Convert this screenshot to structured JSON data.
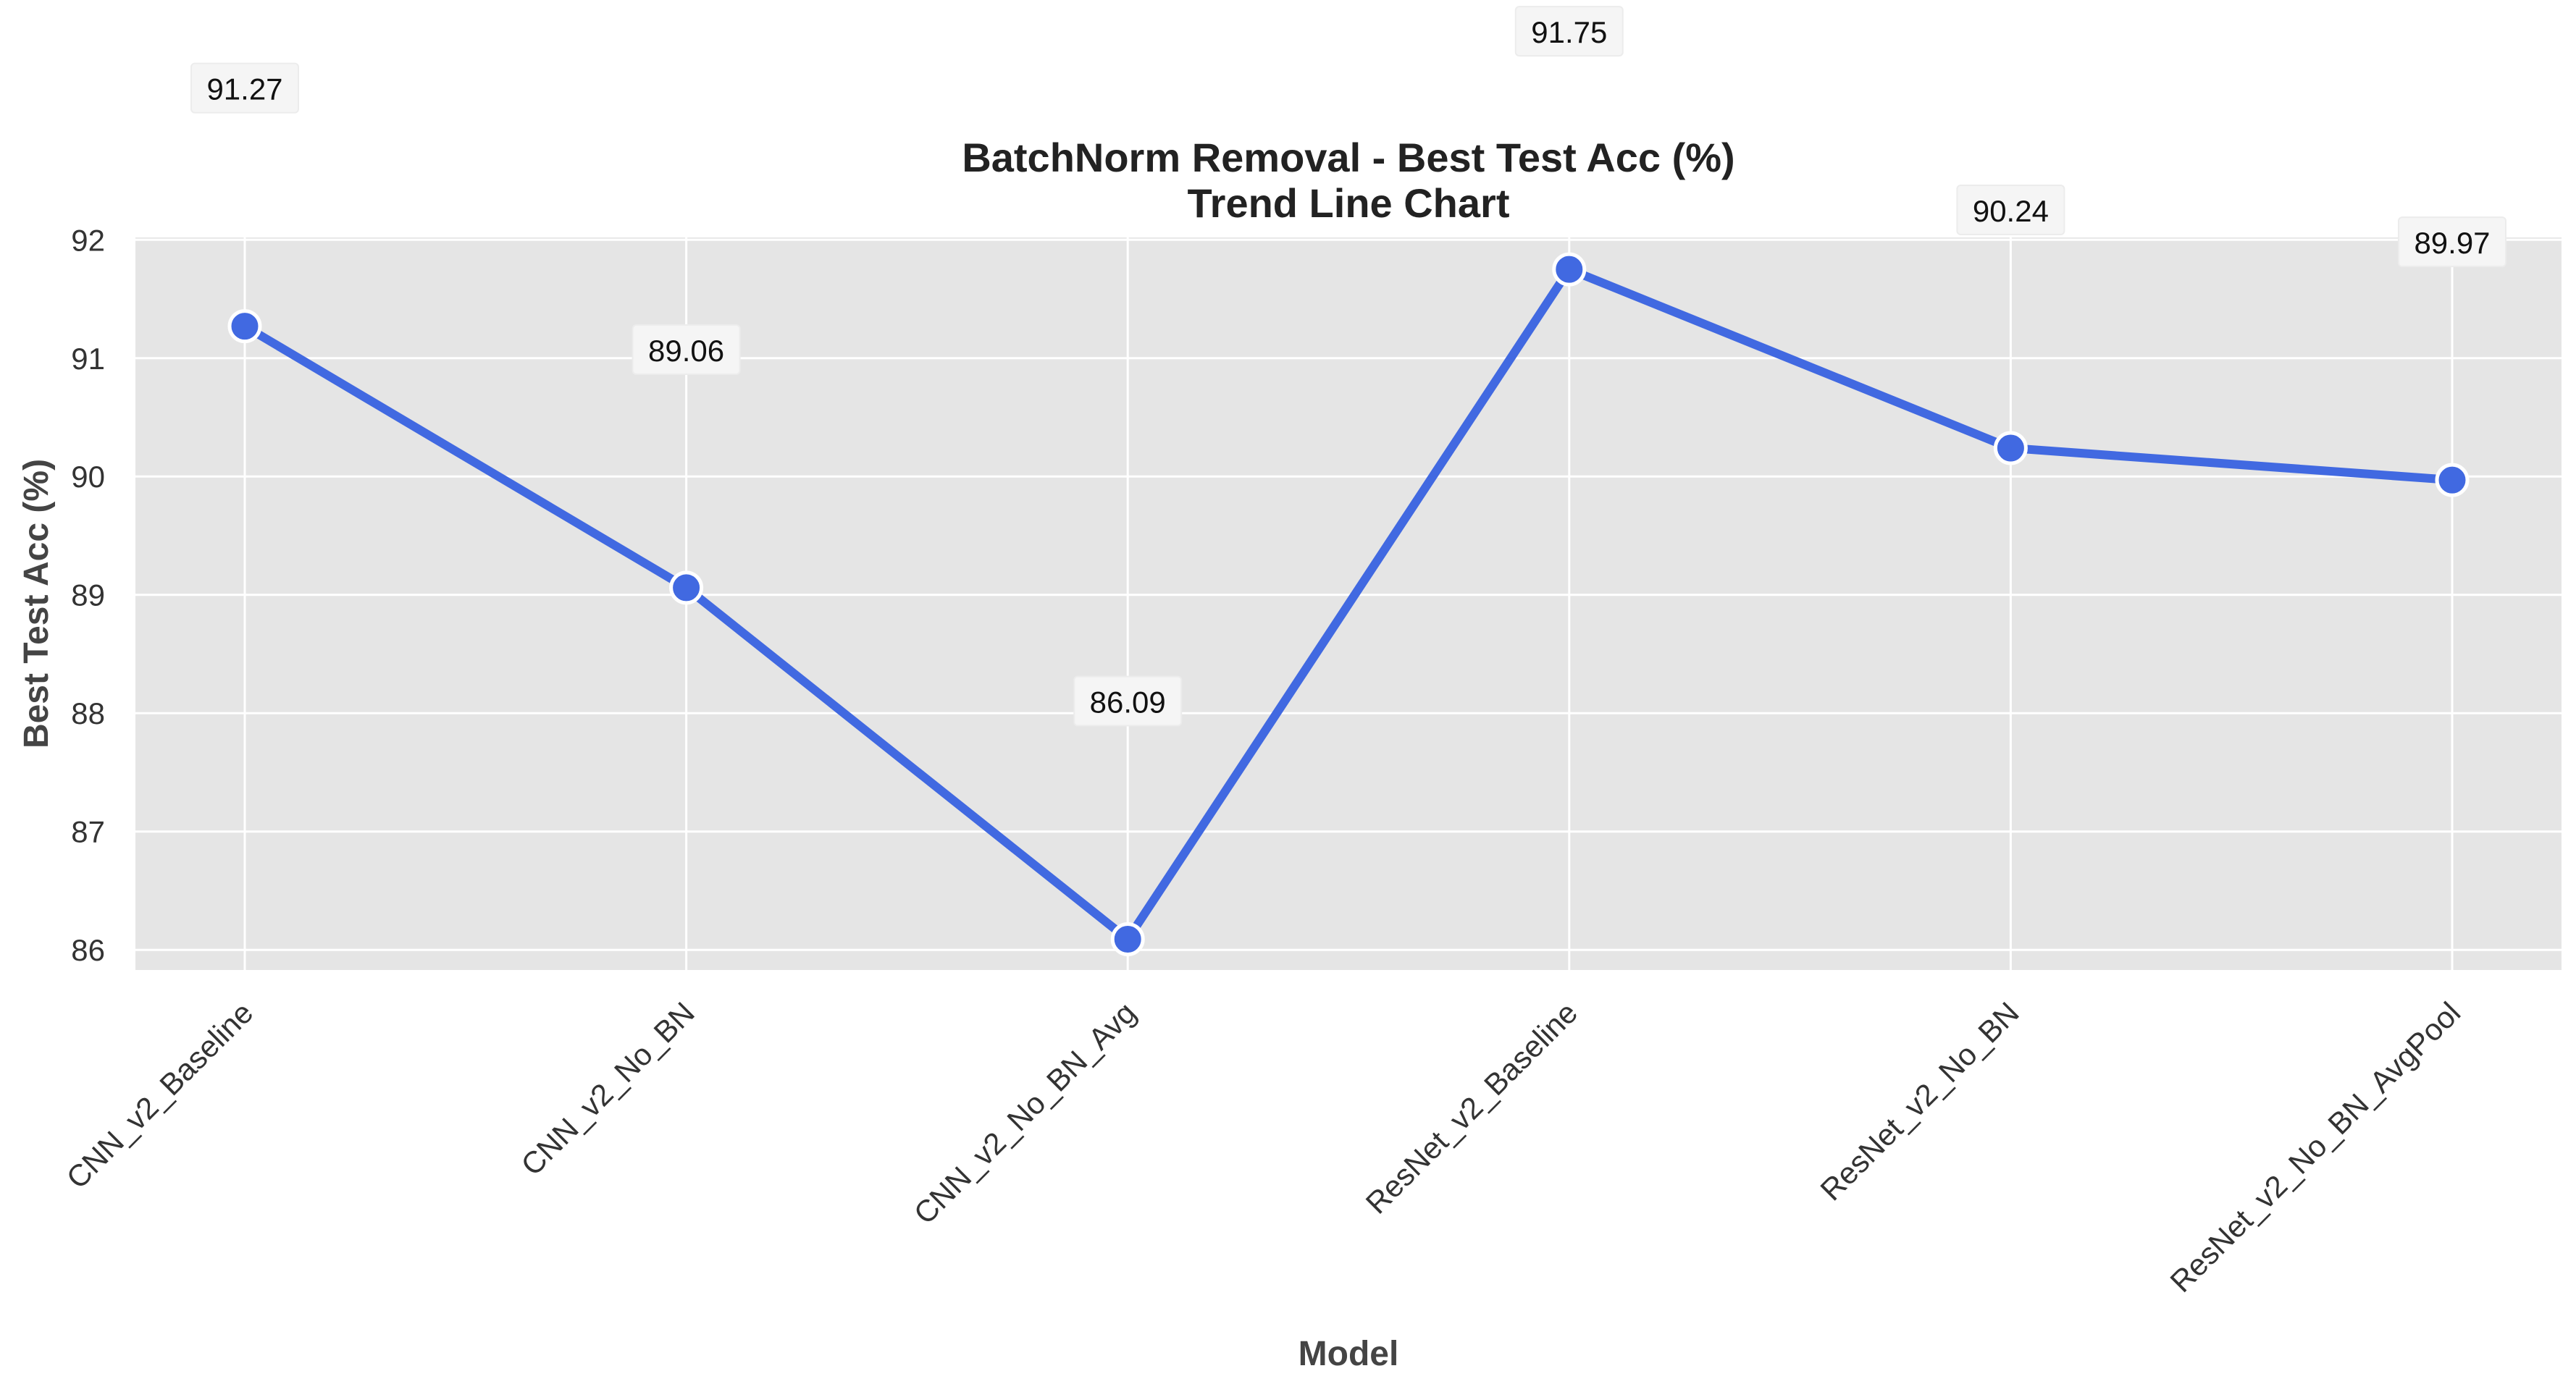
{
  "chart_data": {
    "type": "line",
    "title": "BatchNorm Removal - Best Test Acc (%)",
    "subtitle": "Trend Line Chart",
    "xlabel": "Model",
    "ylabel": "Best Test Acc (%)",
    "categories": [
      "CNN_v2_Baseline",
      "CNN_v2_No_BN",
      "CNN_v2_No_BN_Avg",
      "ResNet_v2_Baseline",
      "ResNet_v2_No_BN",
      "ResNet_v2_No_BN_AvgPool"
    ],
    "values": [
      91.27,
      89.06,
      86.09,
      91.75,
      90.24,
      89.97
    ],
    "data_labels": [
      "91.27",
      "89.06",
      "86.09",
      "91.75",
      "90.24",
      "89.97"
    ],
    "yticks": [
      86,
      87,
      88,
      89,
      90,
      91,
      92
    ],
    "ylim": [
      85.83,
      92.02
    ],
    "grid": true,
    "legend": "none",
    "colors": {
      "line": "#4169E1",
      "marker_edge": "#ffffff",
      "plot_background": "#E5E5E5",
      "grid": "#ffffff",
      "label_box": "#F5F5F5"
    }
  }
}
